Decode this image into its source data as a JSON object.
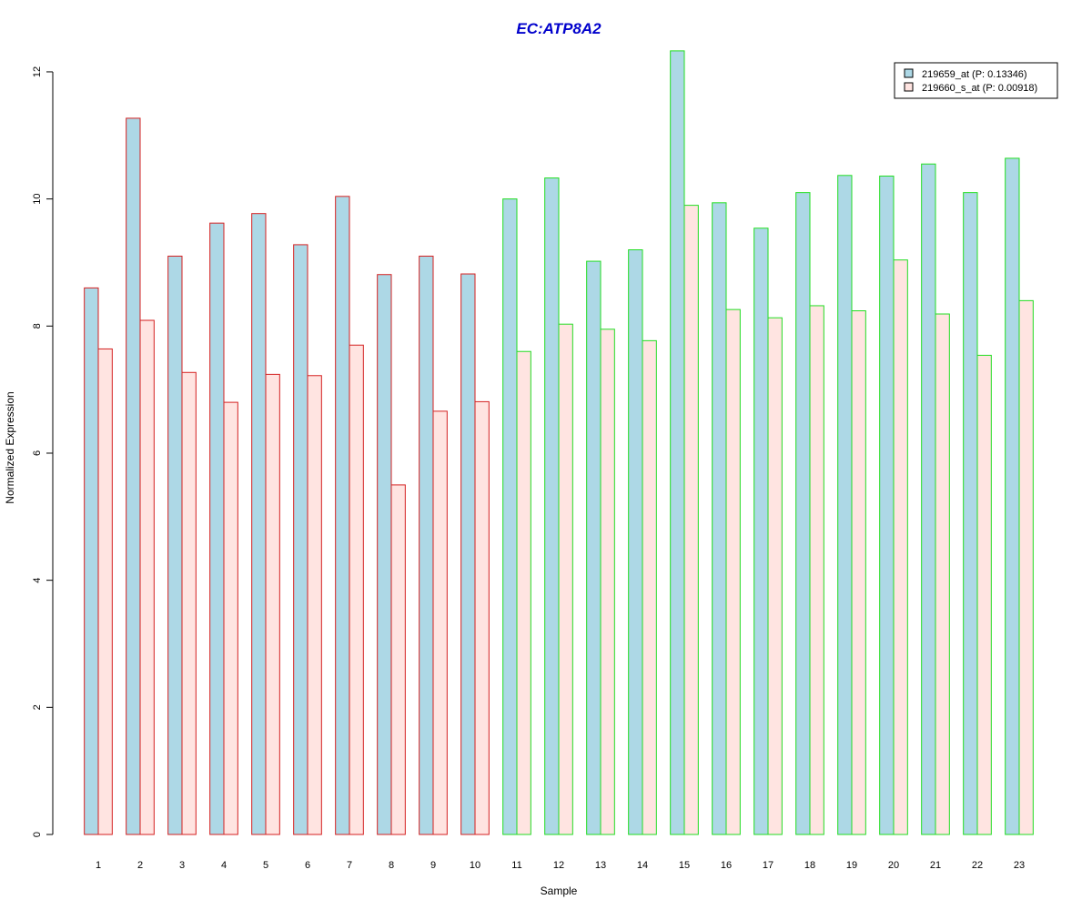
{
  "chart_data": {
    "type": "bar",
    "title": "EC:ATP8A2",
    "xlabel": "Sample",
    "ylabel": "Normalized Expression",
    "categories": [
      "1",
      "2",
      "3",
      "4",
      "5",
      "6",
      "7",
      "8",
      "9",
      "10",
      "11",
      "12",
      "13",
      "14",
      "15",
      "16",
      "17",
      "18",
      "19",
      "20",
      "21",
      "22",
      "23"
    ],
    "ylim": [
      0,
      12.3
    ],
    "yticks": [
      0,
      2,
      4,
      6,
      8,
      10,
      12
    ],
    "series": [
      {
        "name": "219659_at (P: 0.13346)",
        "fill": "#add8e6",
        "values": [
          8.6,
          11.27,
          9.1,
          9.62,
          9.77,
          9.28,
          10.04,
          8.81,
          9.1,
          8.82,
          10.0,
          10.33,
          9.02,
          9.2,
          12.33,
          9.94,
          9.54,
          10.1,
          10.37,
          10.36,
          10.55,
          10.1,
          10.64
        ]
      },
      {
        "name": "219660_s_at (P: 0.00918)",
        "fill": "#ffe4e1",
        "values": [
          7.64,
          8.09,
          7.27,
          6.8,
          7.24,
          7.22,
          7.7,
          5.5,
          6.66,
          6.81,
          7.6,
          8.03,
          7.95,
          7.77,
          9.9,
          8.26,
          8.13,
          8.32,
          8.24,
          9.04,
          8.19,
          7.54,
          8.4
        ]
      }
    ],
    "border_colors": [
      "#d42020",
      "#d42020",
      "#d42020",
      "#d42020",
      "#d42020",
      "#d42020",
      "#d42020",
      "#d42020",
      "#d42020",
      "#d42020",
      "#22dd22",
      "#22dd22",
      "#22dd22",
      "#22dd22",
      "#22dd22",
      "#22dd22",
      "#22dd22",
      "#22dd22",
      "#22dd22",
      "#22dd22",
      "#22dd22",
      "#22dd22",
      "#22dd22"
    ],
    "title_color": "#0000cc",
    "legend_position": "top-right",
    "grid": false
  }
}
